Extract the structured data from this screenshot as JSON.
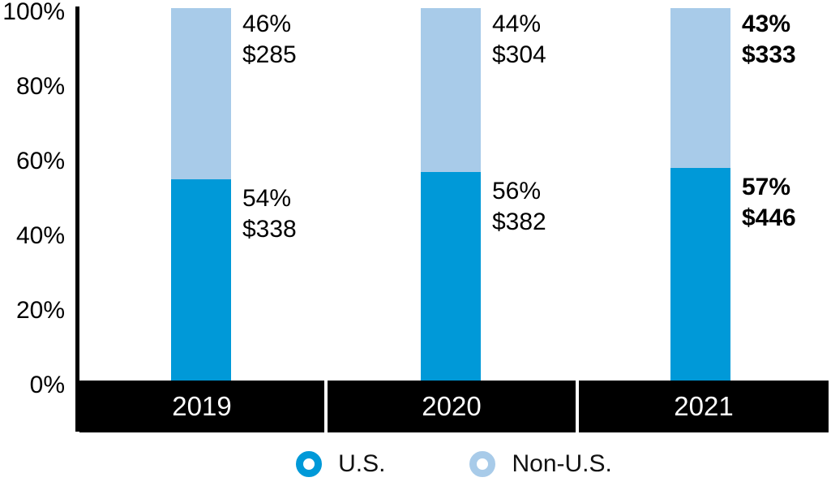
{
  "colors": {
    "us_segment": "#0099D8",
    "non_us_segment": "#A8CBE9",
    "axis": "#000000",
    "year_band_bg": "#000000",
    "year_band_text": "#FFFFFF",
    "label_text": "#000000"
  },
  "y_axis": {
    "ticks": {
      "t100": "100%",
      "t80": "80%",
      "t60": "60%",
      "t40": "40%",
      "t20": "20%",
      "t0": "0%"
    }
  },
  "bars": [
    {
      "year": "2019",
      "non_us_pct": "46%",
      "non_us_amount": "$285",
      "non_us_value": 46,
      "us_pct": "54%",
      "us_amount": "$338",
      "us_value": 54,
      "emphasis": false
    },
    {
      "year": "2020",
      "non_us_pct": "44%",
      "non_us_amount": "$304",
      "non_us_value": 44,
      "us_pct": "56%",
      "us_amount": "$382",
      "us_value": 56,
      "emphasis": false
    },
    {
      "year": "2021",
      "non_us_pct": "43%",
      "non_us_amount": "$333",
      "non_us_value": 43,
      "us_pct": "57%",
      "us_amount": "$446",
      "us_value": 57,
      "emphasis": true
    }
  ],
  "legend": {
    "us_label": "U.S.",
    "non_us_label": "Non-U.S."
  },
  "chart_data": {
    "type": "bar",
    "variant": "stacked-100-percent",
    "title": "",
    "xlabel": "",
    "ylabel": "",
    "categories": [
      "2019",
      "2020",
      "2021"
    ],
    "series": [
      {
        "name": "U.S.",
        "color": "#0099D8",
        "percent_values": [
          54,
          56,
          57
        ],
        "dollar_values": [
          338,
          382,
          446
        ],
        "dollar_labels": [
          "$338",
          "$382",
          "$446"
        ]
      },
      {
        "name": "Non-U.S.",
        "color": "#A8CBE9",
        "percent_values": [
          46,
          44,
          43
        ],
        "dollar_values": [
          285,
          304,
          333
        ],
        "dollar_labels": [
          "$285",
          "$304",
          "$333"
        ]
      }
    ],
    "y_ticks": [
      "0%",
      "20%",
      "40%",
      "60%",
      "80%",
      "100%"
    ],
    "ylim": [
      0,
      100
    ],
    "grid": false,
    "legend_position": "bottom",
    "emphasized_category": "2021"
  }
}
